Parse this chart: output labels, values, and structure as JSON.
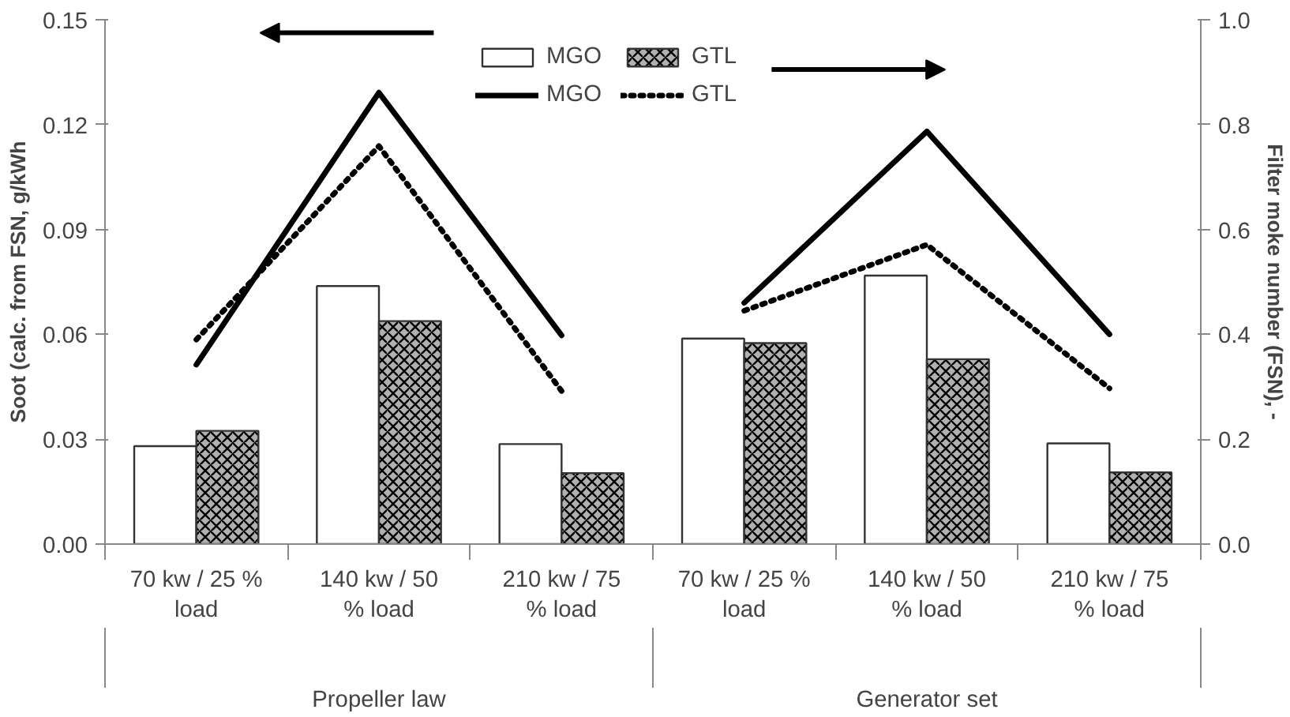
{
  "chart_data": {
    "type": "bar",
    "categories": [
      "70 kw / 25 % load",
      "140 kw / 50 % load",
      "210 kw / 75 % load",
      "70 kw / 25 % load",
      "140 kw / 50 % load",
      "210 kw / 75 % load"
    ],
    "series": [
      {
        "name": "MGO",
        "color": "#ffffff",
        "values": [
          0.028,
          0.0738,
          0.0286,
          0.0588,
          0.0768,
          0.0288
        ]
      },
      {
        "name": "GTL",
        "color": "#b0b0b0",
        "values": [
          0.0324,
          0.0638,
          0.0203,
          0.0575,
          0.0529,
          0.0205
        ]
      },
      {
        "name": "MGO",
        "type": "line",
        "axis": "y2",
        "line_style": "solid",
        "color": "#000000",
        "values": [
          0.342,
          0.861,
          0.398,
          null,
          null,
          null
        ]
      },
      {
        "type": "line",
        "axis": "y2",
        "line_style": "solid",
        "color": "#000000",
        "values": [
          null,
          null,
          null,
          0.46,
          0.787,
          0.4
        ]
      },
      {
        "name": "GTL",
        "type": "line",
        "axis": "y2",
        "line_style": "dotted",
        "color": "#000000",
        "values": [
          0.39,
          0.759,
          0.292,
          null,
          null,
          null
        ]
      },
      {
        "type": "line",
        "axis": "y2",
        "line_style": "dotted",
        "color": "#000000",
        "values": [
          null,
          null,
          null,
          0.445,
          0.571,
          0.297
        ]
      }
    ],
    "ylabel": "Soot (calc. from FSN, g/kWh",
    "y2label": "Filter moke number (FSN), -",
    "ylim": [
      0,
      0.15
    ],
    "yticks": [
      {
        "value": 0,
        "label": "0.00"
      },
      {
        "value": 0.03,
        "label": "0.03"
      },
      {
        "value": 0.06,
        "label": "0.06"
      },
      {
        "value": 0.09,
        "label": "0.09"
      },
      {
        "value": 0.12,
        "label": "0.12"
      },
      {
        "value": 0.15,
        "label": "0.15"
      }
    ],
    "y2lim": [
      0,
      1
    ],
    "y2ticks": [
      {
        "value": 0,
        "label": "0.0"
      },
      {
        "value": 0.2,
        "label": "0.2"
      },
      {
        "value": 0.4,
        "label": "0.4"
      },
      {
        "value": 0.6,
        "label": "0.6"
      },
      {
        "value": 0.8,
        "label": "0.8"
      },
      {
        "value": 1,
        "label": "1.0"
      }
    ],
    "annotations": [
      "Propeller law",
      "Generator set"
    ],
    "grid": false,
    "legend": "top"
  }
}
